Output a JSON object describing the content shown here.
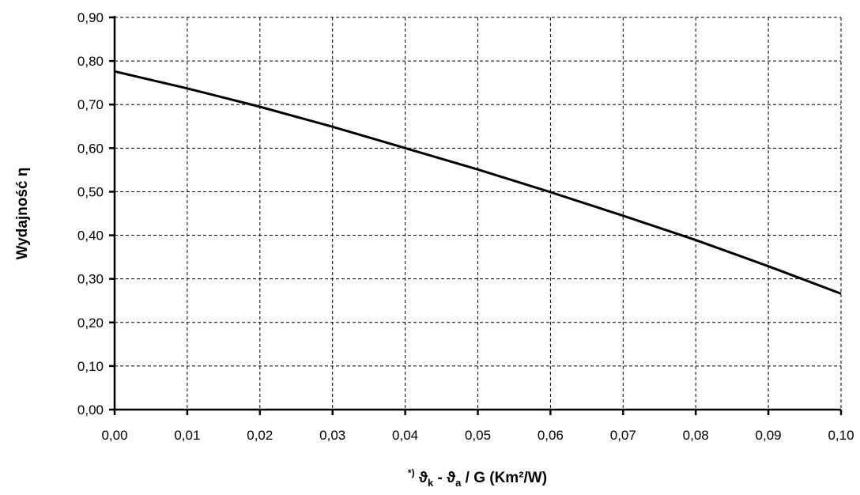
{
  "chart_data": {
    "type": "line",
    "xlabel_parts": {
      "note": "*)",
      "var1": "ϑ",
      "sub1": "k",
      "sep": " - ",
      "var2": "ϑ",
      "sub2": "a",
      "rest": " / G (Km²/W)"
    },
    "ylabel": "Wydajność η",
    "xlim": [
      0,
      0.1
    ],
    "ylim": [
      0,
      0.9
    ],
    "x_ticks": [
      0,
      0.01,
      0.02,
      0.03,
      0.04,
      0.05,
      0.06,
      0.07,
      0.08,
      0.09,
      0.1
    ],
    "x_tick_labels": [
      "0,00",
      "0,01",
      "0,02",
      "0,03",
      "0,04",
      "0,05",
      "0,06",
      "0,07",
      "0,08",
      "0,09",
      "0,10"
    ],
    "y_ticks": [
      0,
      0.1,
      0.2,
      0.3,
      0.4,
      0.5,
      0.6,
      0.7,
      0.8,
      0.9
    ],
    "y_tick_labels": [
      "0,00",
      "0,10",
      "0,20",
      "0,30",
      "0,40",
      "0,50",
      "0,60",
      "0,70",
      "0,80",
      "0,90"
    ],
    "grid": true,
    "series": [
      {
        "x": [
          0,
          0.01,
          0.02,
          0.03,
          0.04,
          0.05,
          0.06,
          0.07,
          0.08,
          0.09,
          0.1
        ],
        "y": [
          0.776,
          0.737,
          0.695,
          0.649,
          0.6,
          0.551,
          0.499,
          0.445,
          0.389,
          0.329,
          0.266
        ]
      }
    ],
    "colors": {
      "line": "#000000",
      "grid": "#000000",
      "background": "#ffffff"
    }
  }
}
